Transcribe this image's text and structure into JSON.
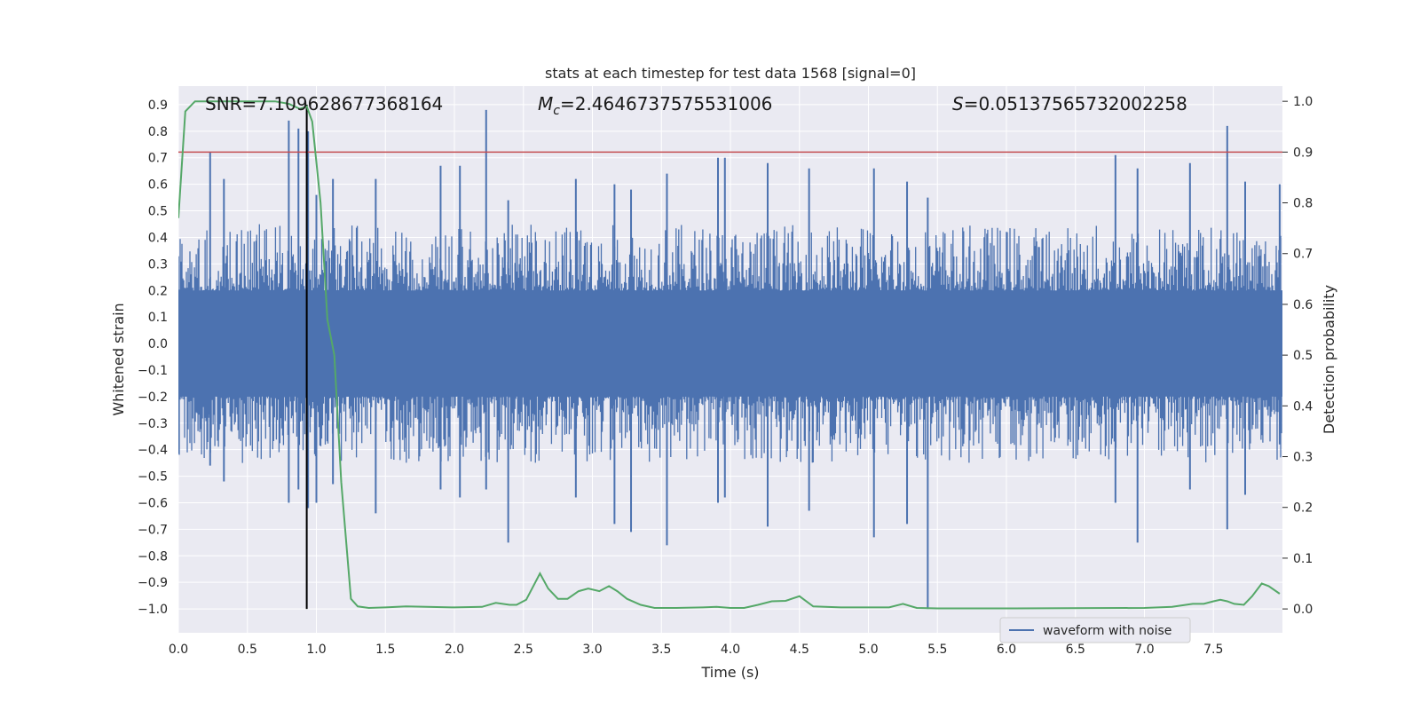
{
  "chart_data": {
    "type": "line",
    "title": "stats at each timestep for test data 1568 [signal=0]",
    "xlabel": "Time (s)",
    "ylabel_left": "Whitened strain",
    "ylabel_right": "Detection probability",
    "xlim": [
      0.0,
      8.0
    ],
    "ylim_left": [
      -1.09,
      0.97
    ],
    "ylim_right": [
      -0.047,
      1.03
    ],
    "grid": true,
    "x_ticks": [
      "0.0",
      "0.5",
      "1.0",
      "1.5",
      "2.0",
      "2.5",
      "3.0",
      "3.5",
      "4.0",
      "4.5",
      "5.0",
      "5.5",
      "6.0",
      "6.5",
      "7.0",
      "7.5"
    ],
    "y_ticks_left": [
      "0.9",
      "0.8",
      "0.7",
      "0.6",
      "0.5",
      "0.4",
      "0.3",
      "0.2",
      "0.1",
      "0.0",
      "−0.1",
      "−0.2",
      "−0.3",
      "−0.4",
      "−0.5",
      "−0.6",
      "−0.7",
      "−0.8",
      "−0.9",
      "−1.0"
    ],
    "y_ticks_right": [
      "1.0",
      "0.9",
      "0.8",
      "0.7",
      "0.6",
      "0.5",
      "0.4",
      "0.3",
      "0.2",
      "0.1",
      "0.0"
    ],
    "annotations": {
      "snr": "SNR=7.109628677368164",
      "mc_symbol": "M",
      "mc_sub": "c",
      "mc_value": "=2.4646737575531006",
      "s_symbol": "S",
      "s_value": "=0.05137565732002258"
    },
    "threshold_line": {
      "axis": "right",
      "value": 0.9,
      "color": "#c44e52"
    },
    "vertical_marker": {
      "x": 0.93,
      "y_from": -1.0,
      "y_to": 0.9,
      "color": "#000000"
    },
    "series": [
      {
        "name": "waveform with noise",
        "axis": "left",
        "color": "#4c72b0",
        "envelope_spikes": [
          [
            0.23,
            0.72,
            -0.46
          ],
          [
            0.33,
            0.62,
            -0.52
          ],
          [
            0.8,
            0.84,
            -0.6
          ],
          [
            0.87,
            0.81,
            -0.55
          ],
          [
            0.94,
            0.8,
            -0.62
          ],
          [
            1.0,
            0.56,
            -0.6
          ],
          [
            1.12,
            0.62,
            -0.53
          ],
          [
            1.43,
            0.62,
            -0.64
          ],
          [
            1.9,
            0.67,
            -0.55
          ],
          [
            2.04,
            0.67,
            -0.58
          ],
          [
            2.23,
            0.88,
            -0.55
          ],
          [
            2.39,
            0.54,
            -0.75
          ],
          [
            2.88,
            0.62,
            -0.58
          ],
          [
            3.16,
            0.6,
            -0.68
          ],
          [
            3.28,
            0.58,
            -0.71
          ],
          [
            3.54,
            0.64,
            -0.76
          ],
          [
            3.91,
            0.7,
            -0.6
          ],
          [
            3.96,
            0.7,
            -0.58
          ],
          [
            4.27,
            0.68,
            -0.69
          ],
          [
            4.57,
            0.66,
            -0.63
          ],
          [
            5.04,
            0.66,
            -0.73
          ],
          [
            5.28,
            0.61,
            -0.68
          ],
          [
            5.43,
            0.55,
            -1.0
          ],
          [
            6.79,
            0.71,
            -0.6
          ],
          [
            6.95,
            0.66,
            -0.75
          ],
          [
            7.33,
            0.68,
            -0.55
          ],
          [
            7.6,
            0.82,
            -0.7
          ],
          [
            7.73,
            0.61,
            -0.57
          ],
          [
            7.98,
            0.6,
            -0.38
          ]
        ]
      },
      {
        "name": "",
        "axis": "right",
        "color": "#55a868",
        "x": [
          0.0,
          0.05,
          0.12,
          0.3,
          0.5,
          0.7,
          0.8,
          0.88,
          0.93,
          0.97,
          1.03,
          1.08,
          1.13,
          1.18,
          1.25,
          1.3,
          1.38,
          1.5,
          1.65,
          1.8,
          2.0,
          2.2,
          2.3,
          2.4,
          2.45,
          2.52,
          2.62,
          2.68,
          2.75,
          2.82,
          2.9,
          2.97,
          3.05,
          3.12,
          3.18,
          3.25,
          3.35,
          3.45,
          3.6,
          3.8,
          3.9,
          4.0,
          4.1,
          4.2,
          4.3,
          4.4,
          4.5,
          4.6,
          4.8,
          5.0,
          5.15,
          5.25,
          5.35,
          5.5,
          6.0,
          7.0,
          7.2,
          7.35,
          7.43,
          7.5,
          7.55,
          7.6,
          7.65,
          7.72,
          7.78,
          7.85,
          7.9,
          7.98
        ],
        "y": [
          0.77,
          0.98,
          1.0,
          1.0,
          1.0,
          1.0,
          0.995,
          0.985,
          0.99,
          0.96,
          0.8,
          0.57,
          0.5,
          0.25,
          0.02,
          0.005,
          0.002,
          0.003,
          0.005,
          0.004,
          0.003,
          0.004,
          0.012,
          0.008,
          0.008,
          0.018,
          0.07,
          0.04,
          0.02,
          0.02,
          0.035,
          0.04,
          0.035,
          0.045,
          0.035,
          0.02,
          0.008,
          0.002,
          0.002,
          0.003,
          0.004,
          0.002,
          0.002,
          0.008,
          0.015,
          0.016,
          0.025,
          0.005,
          0.003,
          0.003,
          0.003,
          0.01,
          0.002,
          0.001,
          0.001,
          0.002,
          0.004,
          0.01,
          0.01,
          0.015,
          0.018,
          0.015,
          0.01,
          0.008,
          0.025,
          0.05,
          0.045,
          0.03
        ]
      }
    ],
    "legend": {
      "position": "lower-right",
      "entries": [
        "waveform with noise"
      ]
    }
  }
}
